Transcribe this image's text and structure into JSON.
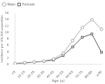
{
  "chart_data": {
    "type": "line",
    "categories": [
      "<9",
      "10-19",
      "20-29",
      "30-39",
      "40-49",
      "50-59",
      "60-69",
      "70-79",
      "80-89",
      "≥90"
    ],
    "series": [
      {
        "name": "Male",
        "color": "#aaaaaa",
        "marker": "o",
        "values": [
          0.3,
          0.6,
          0.8,
          1.1,
          1.7,
          3.5,
          7.5,
          11.5,
          14.0,
          11.0
        ]
      },
      {
        "name": "Female",
        "color": "#555555",
        "marker": "s",
        "values": [
          0.25,
          0.5,
          0.75,
          1.0,
          1.4,
          2.8,
          5.5,
          8.5,
          9.5,
          3.8
        ]
      }
    ],
    "xlabel": "Age (y)",
    "ylabel": "Incidence per 100,000 population",
    "ylim": [
      0,
      16
    ],
    "yticks": [
      0,
      2,
      4,
      6,
      8,
      10,
      12,
      14,
      16
    ],
    "legend": "upper left",
    "grid": false
  }
}
